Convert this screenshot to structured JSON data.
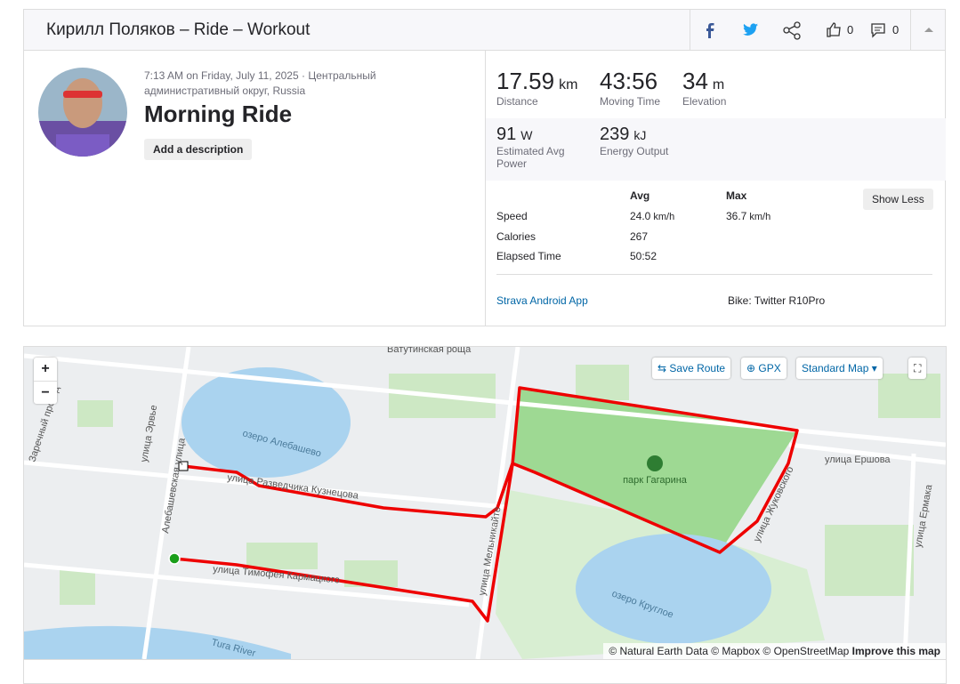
{
  "header": {
    "title": "Кирилл Поляков – Ride – Workout",
    "kudos": "0",
    "comments": "0"
  },
  "activity": {
    "datetime": "7:13 AM on Friday, July 11, 2025",
    "location": "Центральный административный округ, Russia",
    "name": "Morning Ride",
    "add_description": "Add a description"
  },
  "stats": {
    "primary": [
      {
        "value": "17.59",
        "unit": "km",
        "label": "Distance"
      },
      {
        "value": "43:56",
        "label": "Moving Time"
      },
      {
        "value": "34",
        "unit": "m",
        "label": "Elevation"
      }
    ],
    "secondary": [
      {
        "value": "91",
        "unit": "W",
        "label": "Estimated Avg Power"
      },
      {
        "value": "239",
        "unit": "kJ",
        "label": "Energy Output"
      }
    ]
  },
  "details": {
    "columns": [
      "Avg",
      "Max"
    ],
    "show_less": "Show Less",
    "rows": [
      {
        "label": "Speed",
        "avg": "24.0",
        "avg_unit": "km/h",
        "max": "36.7",
        "max_unit": "km/h"
      },
      {
        "label": "Calories",
        "avg": "267"
      },
      {
        "label": "Elapsed Time",
        "avg": "50:52"
      }
    ],
    "app": "Strava Android App",
    "bike": "Bike: Twitter R10Pro"
  },
  "map": {
    "zoom_in": "+",
    "zoom_out": "−",
    "save_route": "Save Route",
    "gpx": "GPX",
    "style": "Standard Map",
    "labels": [
      "Ватутинская роща",
      "озеро Алебашево",
      "улица Разведчика Кузнецова",
      "улица Тимофея Кармацкого",
      "Алебашевская улица",
      "улица Эрвье",
      "Заречный проезд",
      "улица Мельникайте",
      "парк Гагарина",
      "улица Ершова",
      "улица Жуковского",
      "улица Ермака",
      "озеро Круглое",
      "Tura River"
    ],
    "attribution": "© Natural Earth Data © Mapbox © OpenStreetMap",
    "improve": "Improve this map"
  }
}
